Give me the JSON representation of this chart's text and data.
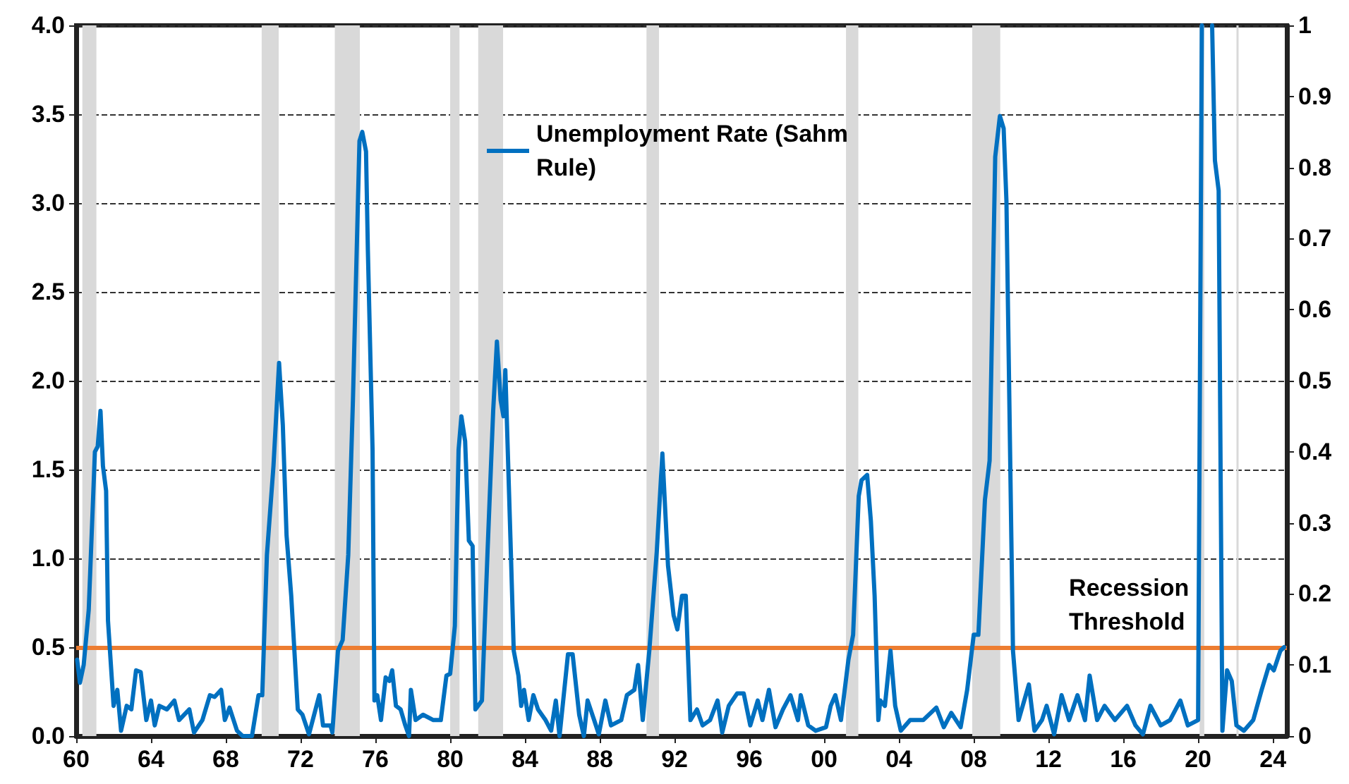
{
  "chart_data": {
    "type": "line",
    "x": [
      1960.05,
      1960.2,
      1960.4,
      1960.67,
      1961.0,
      1961.15,
      1961.3,
      1961.43,
      1961.6,
      1961.7,
      1962.0,
      1962.2,
      1962.4,
      1962.7,
      1962.95,
      1963.2,
      1963.45,
      1963.75,
      1964.0,
      1964.2,
      1964.45,
      1964.85,
      1965.25,
      1965.5,
      1966.05,
      1966.3,
      1966.75,
      1967.15,
      1967.4,
      1967.75,
      1967.95,
      1968.2,
      1968.6,
      1968.9,
      1969.4,
      1969.75,
      1969.95,
      1970.2,
      1970.55,
      1970.85,
      1971.05,
      1971.25,
      1971.5,
      1971.85,
      1972.1,
      1972.45,
      1972.8,
      1973.0,
      1973.2,
      1973.6,
      1973.7,
      1974.0,
      1974.25,
      1974.55,
      1974.8,
      1975.15,
      1975.3,
      1975.5,
      1975.6,
      1975.85,
      1975.95,
      1976.1,
      1976.3,
      1976.55,
      1976.75,
      1976.9,
      1977.1,
      1977.35,
      1977.6,
      1977.8,
      1977.9,
      1978.15,
      1978.55,
      1979.1,
      1979.5,
      1979.8,
      1980.0,
      1980.25,
      1980.45,
      1980.6,
      1980.8,
      1981.0,
      1981.2,
      1981.35,
      1981.7,
      1982.0,
      1982.3,
      1982.5,
      1982.7,
      1982.85,
      1982.95,
      1983.25,
      1983.4,
      1983.65,
      1983.8,
      1983.95,
      1984.2,
      1984.45,
      1984.7,
      1985.1,
      1985.4,
      1985.65,
      1985.85,
      1986.3,
      1986.55,
      1986.9,
      1987.15,
      1987.35,
      1987.7,
      1987.95,
      1988.3,
      1988.6,
      1989.15,
      1989.45,
      1989.85,
      1990.05,
      1990.3,
      1990.65,
      1991.05,
      1991.35,
      1991.65,
      1991.95,
      1992.15,
      1992.4,
      1992.6,
      1992.85,
      1993.2,
      1993.5,
      1993.9,
      1994.3,
      1994.55,
      1994.9,
      1995.35,
      1995.7,
      1996.05,
      1996.45,
      1996.7,
      1997.05,
      1997.4,
      1997.8,
      1998.2,
      1998.6,
      1998.75,
      1999.15,
      1999.55,
      2000.1,
      2000.35,
      2000.6,
      2000.9,
      2001.3,
      2001.55,
      2001.85,
      2002.0,
      2002.3,
      2002.5,
      2002.7,
      2002.9,
      2003.0,
      2003.25,
      2003.55,
      2003.8,
      2004.1,
      2004.6,
      2005.3,
      2006.0,
      2006.4,
      2006.8,
      2007.3,
      2007.65,
      2008.0,
      2008.25,
      2008.6,
      2008.85,
      2009.15,
      2009.4,
      2009.6,
      2009.75,
      2010.1,
      2010.4,
      2010.95,
      2011.25,
      2011.65,
      2011.9,
      2012.3,
      2012.7,
      2013.1,
      2013.55,
      2013.95,
      2014.2,
      2014.6,
      2015.0,
      2015.55,
      2016.2,
      2016.65,
      2017.05,
      2017.45,
      2018.0,
      2018.5,
      2019.05,
      2019.45,
      2020.0,
      2020.2,
      2020.5,
      2020.75,
      2020.9,
      2021.1,
      2021.3,
      2021.55,
      2021.8,
      2022.05,
      2022.45,
      2022.95,
      2023.4,
      2023.8,
      2024.05,
      2024.4,
      2024.6
    ],
    "series": [
      {
        "name": "Unemployment Rate (Sahm Rule)",
        "color": "#0070c0",
        "values": [
          0.43,
          0.3,
          0.4,
          0.71,
          1.6,
          1.63,
          1.83,
          1.52,
          1.38,
          0.65,
          0.17,
          0.26,
          0.03,
          0.17,
          0.15,
          0.37,
          0.36,
          0.09,
          0.2,
          0.06,
          0.17,
          0.15,
          0.2,
          0.09,
          0.15,
          0.02,
          0.09,
          0.23,
          0.22,
          0.26,
          0.09,
          0.16,
          0.03,
          0.0,
          0.0,
          0.23,
          0.23,
          1.02,
          1.52,
          2.1,
          1.75,
          1.13,
          0.79,
          0.15,
          0.12,
          0.01,
          0.15,
          0.23,
          0.06,
          0.06,
          0.02,
          0.48,
          0.54,
          1.02,
          1.89,
          3.35,
          3.4,
          3.29,
          2.73,
          1.61,
          0.2,
          0.23,
          0.09,
          0.33,
          0.31,
          0.37,
          0.17,
          0.15,
          0.06,
          0.0,
          0.26,
          0.09,
          0.12,
          0.09,
          0.09,
          0.34,
          0.35,
          0.62,
          1.61,
          1.8,
          1.66,
          1.1,
          1.07,
          0.15,
          0.2,
          1.04,
          1.83,
          2.22,
          1.89,
          1.8,
          2.06,
          1.02,
          0.48,
          0.34,
          0.17,
          0.26,
          0.09,
          0.23,
          0.15,
          0.09,
          0.03,
          0.2,
          0.0,
          0.46,
          0.46,
          0.12,
          0.0,
          0.2,
          0.09,
          0.01,
          0.2,
          0.06,
          0.09,
          0.23,
          0.26,
          0.4,
          0.09,
          0.48,
          1.04,
          1.59,
          0.96,
          0.68,
          0.6,
          0.79,
          0.79,
          0.09,
          0.15,
          0.06,
          0.09,
          0.2,
          0.02,
          0.17,
          0.24,
          0.24,
          0.06,
          0.2,
          0.09,
          0.26,
          0.05,
          0.15,
          0.23,
          0.09,
          0.23,
          0.06,
          0.03,
          0.05,
          0.17,
          0.23,
          0.09,
          0.43,
          0.57,
          1.35,
          1.44,
          1.47,
          1.21,
          0.79,
          0.09,
          0.2,
          0.17,
          0.48,
          0.17,
          0.03,
          0.09,
          0.09,
          0.16,
          0.05,
          0.13,
          0.05,
          0.26,
          0.57,
          0.57,
          1.33,
          1.55,
          3.26,
          3.49,
          3.42,
          3.01,
          0.48,
          0.09,
          0.29,
          0.03,
          0.09,
          0.17,
          0.01,
          0.23,
          0.09,
          0.23,
          0.09,
          0.34,
          0.09,
          0.17,
          0.09,
          0.17,
          0.06,
          0.01,
          0.17,
          0.06,
          0.09,
          0.2,
          0.06,
          0.09,
          4.0,
          null,
          4.0,
          3.24,
          3.07,
          0.03,
          0.37,
          0.31,
          0.06,
          0.03,
          0.09,
          0.26,
          0.4,
          0.37,
          0.48,
          0.5
        ]
      }
    ],
    "xlim": [
      1960,
      2024.75
    ],
    "xticks": [
      {
        "value": 1960,
        "label": "60"
      },
      {
        "value": 1964,
        "label": "64"
      },
      {
        "value": 1968,
        "label": "68"
      },
      {
        "value": 1972,
        "label": "72"
      },
      {
        "value": 1976,
        "label": "76"
      },
      {
        "value": 1980,
        "label": "80"
      },
      {
        "value": 1984,
        "label": "84"
      },
      {
        "value": 1988,
        "label": "88"
      },
      {
        "value": 1992,
        "label": "92"
      },
      {
        "value": 1996,
        "label": "96"
      },
      {
        "value": 2000,
        "label": "00"
      },
      {
        "value": 2004,
        "label": "04"
      },
      {
        "value": 2008,
        "label": "08"
      },
      {
        "value": 2012,
        "label": "12"
      },
      {
        "value": 2016,
        "label": "16"
      },
      {
        "value": 2020,
        "label": "20"
      },
      {
        "value": 2024,
        "label": "24"
      }
    ],
    "ylim": [
      0,
      4
    ],
    "yticks": [
      {
        "value": 0,
        "label": "0.0"
      },
      {
        "value": 0.5,
        "label": "0.5"
      },
      {
        "value": 1,
        "label": "1.0"
      },
      {
        "value": 1.5,
        "label": "1.5"
      },
      {
        "value": 2,
        "label": "2.0"
      },
      {
        "value": 2.5,
        "label": "2.5"
      },
      {
        "value": 3,
        "label": "3.0"
      },
      {
        "value": 3.5,
        "label": "3.5"
      },
      {
        "value": 4,
        "label": "4.0"
      }
    ],
    "y2lim": [
      0,
      1
    ],
    "y2ticks": [
      0,
      0.1,
      0.2,
      0.3,
      0.4,
      0.5,
      0.6,
      0.7,
      0.8,
      0.9,
      1
    ],
    "ref_lines": [
      {
        "axis": "y",
        "value": 0.5,
        "label": "Recession Threshold",
        "color": "#ed7d31"
      },
      {
        "axis": "x",
        "value": 2022.1,
        "color": "#d9d9d9"
      }
    ],
    "bands": [
      {
        "axis": "x",
        "from": 1960.33,
        "to": 1961.08,
        "color": "#d9d9d9"
      },
      {
        "axis": "x",
        "from": 1969.92,
        "to": 1970.83,
        "color": "#d9d9d9"
      },
      {
        "axis": "x",
        "from": 1973.83,
        "to": 1975.17,
        "color": "#d9d9d9"
      },
      {
        "axis": "x",
        "from": 1980.0,
        "to": 1980.5,
        "color": "#d9d9d9"
      },
      {
        "axis": "x",
        "from": 1981.5,
        "to": 1982.83,
        "color": "#d9d9d9"
      },
      {
        "axis": "x",
        "from": 1990.5,
        "to": 1991.17,
        "color": "#d9d9d9"
      },
      {
        "axis": "x",
        "from": 2001.17,
        "to": 2001.83,
        "color": "#d9d9d9"
      },
      {
        "axis": "x",
        "from": 2007.92,
        "to": 2009.42,
        "color": "#d9d9d9"
      },
      {
        "axis": "x",
        "from": 2020.08,
        "to": 2020.33,
        "color": "#d9d9d9"
      }
    ],
    "grid": "y",
    "legend": "top",
    "marker": "none",
    "line_style": "solid"
  }
}
